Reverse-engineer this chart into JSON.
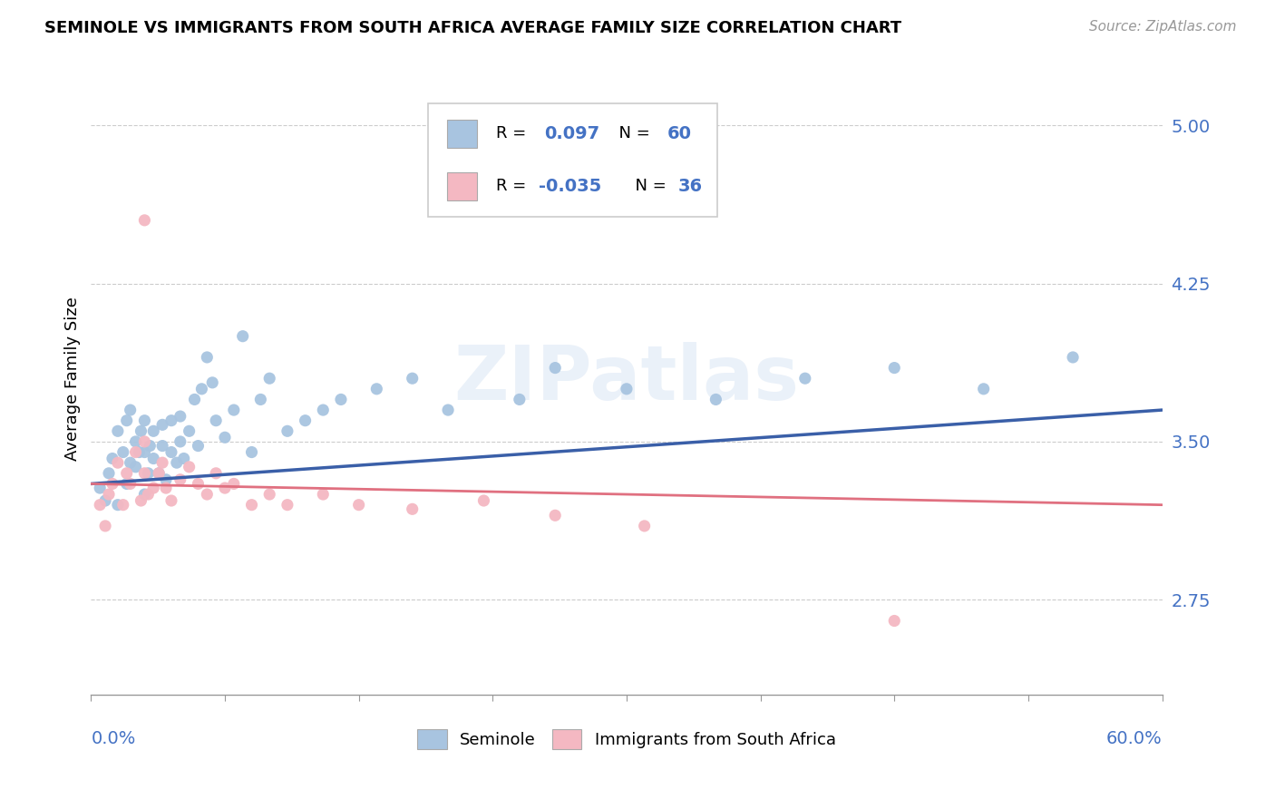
{
  "title": "SEMINOLE VS IMMIGRANTS FROM SOUTH AFRICA AVERAGE FAMILY SIZE CORRELATION CHART",
  "source": "Source: ZipAtlas.com",
  "ylabel": "Average Family Size",
  "yticks": [
    2.75,
    3.5,
    4.25,
    5.0
  ],
  "xlim": [
    0.0,
    0.6
  ],
  "ylim": [
    2.3,
    5.3
  ],
  "watermark": "ZIPatlas",
  "legend1_R": "0.097",
  "legend1_N": "60",
  "legend2_R": "-0.035",
  "legend2_N": "36",
  "seminole_color": "#a8c4e0",
  "immigrants_color": "#f4b8c2",
  "trendline1_color": "#3a5fa8",
  "trendline2_color": "#e07080",
  "title_fontsize": 13,
  "tick_fontsize": 14,
  "ylabel_fontsize": 13,
  "seminole_x": [
    0.005,
    0.008,
    0.01,
    0.012,
    0.015,
    0.015,
    0.018,
    0.02,
    0.02,
    0.022,
    0.022,
    0.025,
    0.025,
    0.027,
    0.028,
    0.03,
    0.03,
    0.03,
    0.032,
    0.033,
    0.035,
    0.035,
    0.038,
    0.04,
    0.04,
    0.042,
    0.045,
    0.045,
    0.048,
    0.05,
    0.05,
    0.052,
    0.055,
    0.058,
    0.06,
    0.062,
    0.065,
    0.068,
    0.07,
    0.075,
    0.08,
    0.085,
    0.09,
    0.095,
    0.1,
    0.11,
    0.12,
    0.13,
    0.14,
    0.16,
    0.18,
    0.2,
    0.24,
    0.26,
    0.3,
    0.35,
    0.4,
    0.45,
    0.5,
    0.55
  ],
  "seminole_y": [
    3.28,
    3.22,
    3.35,
    3.42,
    3.2,
    3.55,
    3.45,
    3.3,
    3.6,
    3.4,
    3.65,
    3.38,
    3.5,
    3.45,
    3.55,
    3.25,
    3.45,
    3.6,
    3.35,
    3.48,
    3.42,
    3.55,
    3.35,
    3.48,
    3.58,
    3.32,
    3.45,
    3.6,
    3.4,
    3.5,
    3.62,
    3.42,
    3.55,
    3.7,
    3.48,
    3.75,
    3.9,
    3.78,
    3.6,
    3.52,
    3.65,
    4.0,
    3.45,
    3.7,
    3.8,
    3.55,
    3.6,
    3.65,
    3.7,
    3.75,
    3.8,
    3.65,
    3.7,
    3.85,
    3.75,
    3.7,
    3.8,
    3.85,
    3.75,
    3.9
  ],
  "immigrants_x": [
    0.005,
    0.008,
    0.01,
    0.012,
    0.015,
    0.018,
    0.02,
    0.022,
    0.025,
    0.028,
    0.03,
    0.03,
    0.032,
    0.035,
    0.038,
    0.04,
    0.042,
    0.045,
    0.05,
    0.055,
    0.06,
    0.065,
    0.07,
    0.075,
    0.08,
    0.09,
    0.1,
    0.11,
    0.13,
    0.15,
    0.18,
    0.22,
    0.26,
    0.31,
    0.45,
    0.03
  ],
  "immigrants_y": [
    3.2,
    3.1,
    3.25,
    3.3,
    3.4,
    3.2,
    3.35,
    3.3,
    3.45,
    3.22,
    3.35,
    3.5,
    3.25,
    3.28,
    3.35,
    3.4,
    3.28,
    3.22,
    3.32,
    3.38,
    3.3,
    3.25,
    3.35,
    3.28,
    3.3,
    3.2,
    3.25,
    3.2,
    3.25,
    3.2,
    3.18,
    3.22,
    3.15,
    3.1,
    2.65,
    4.55
  ]
}
